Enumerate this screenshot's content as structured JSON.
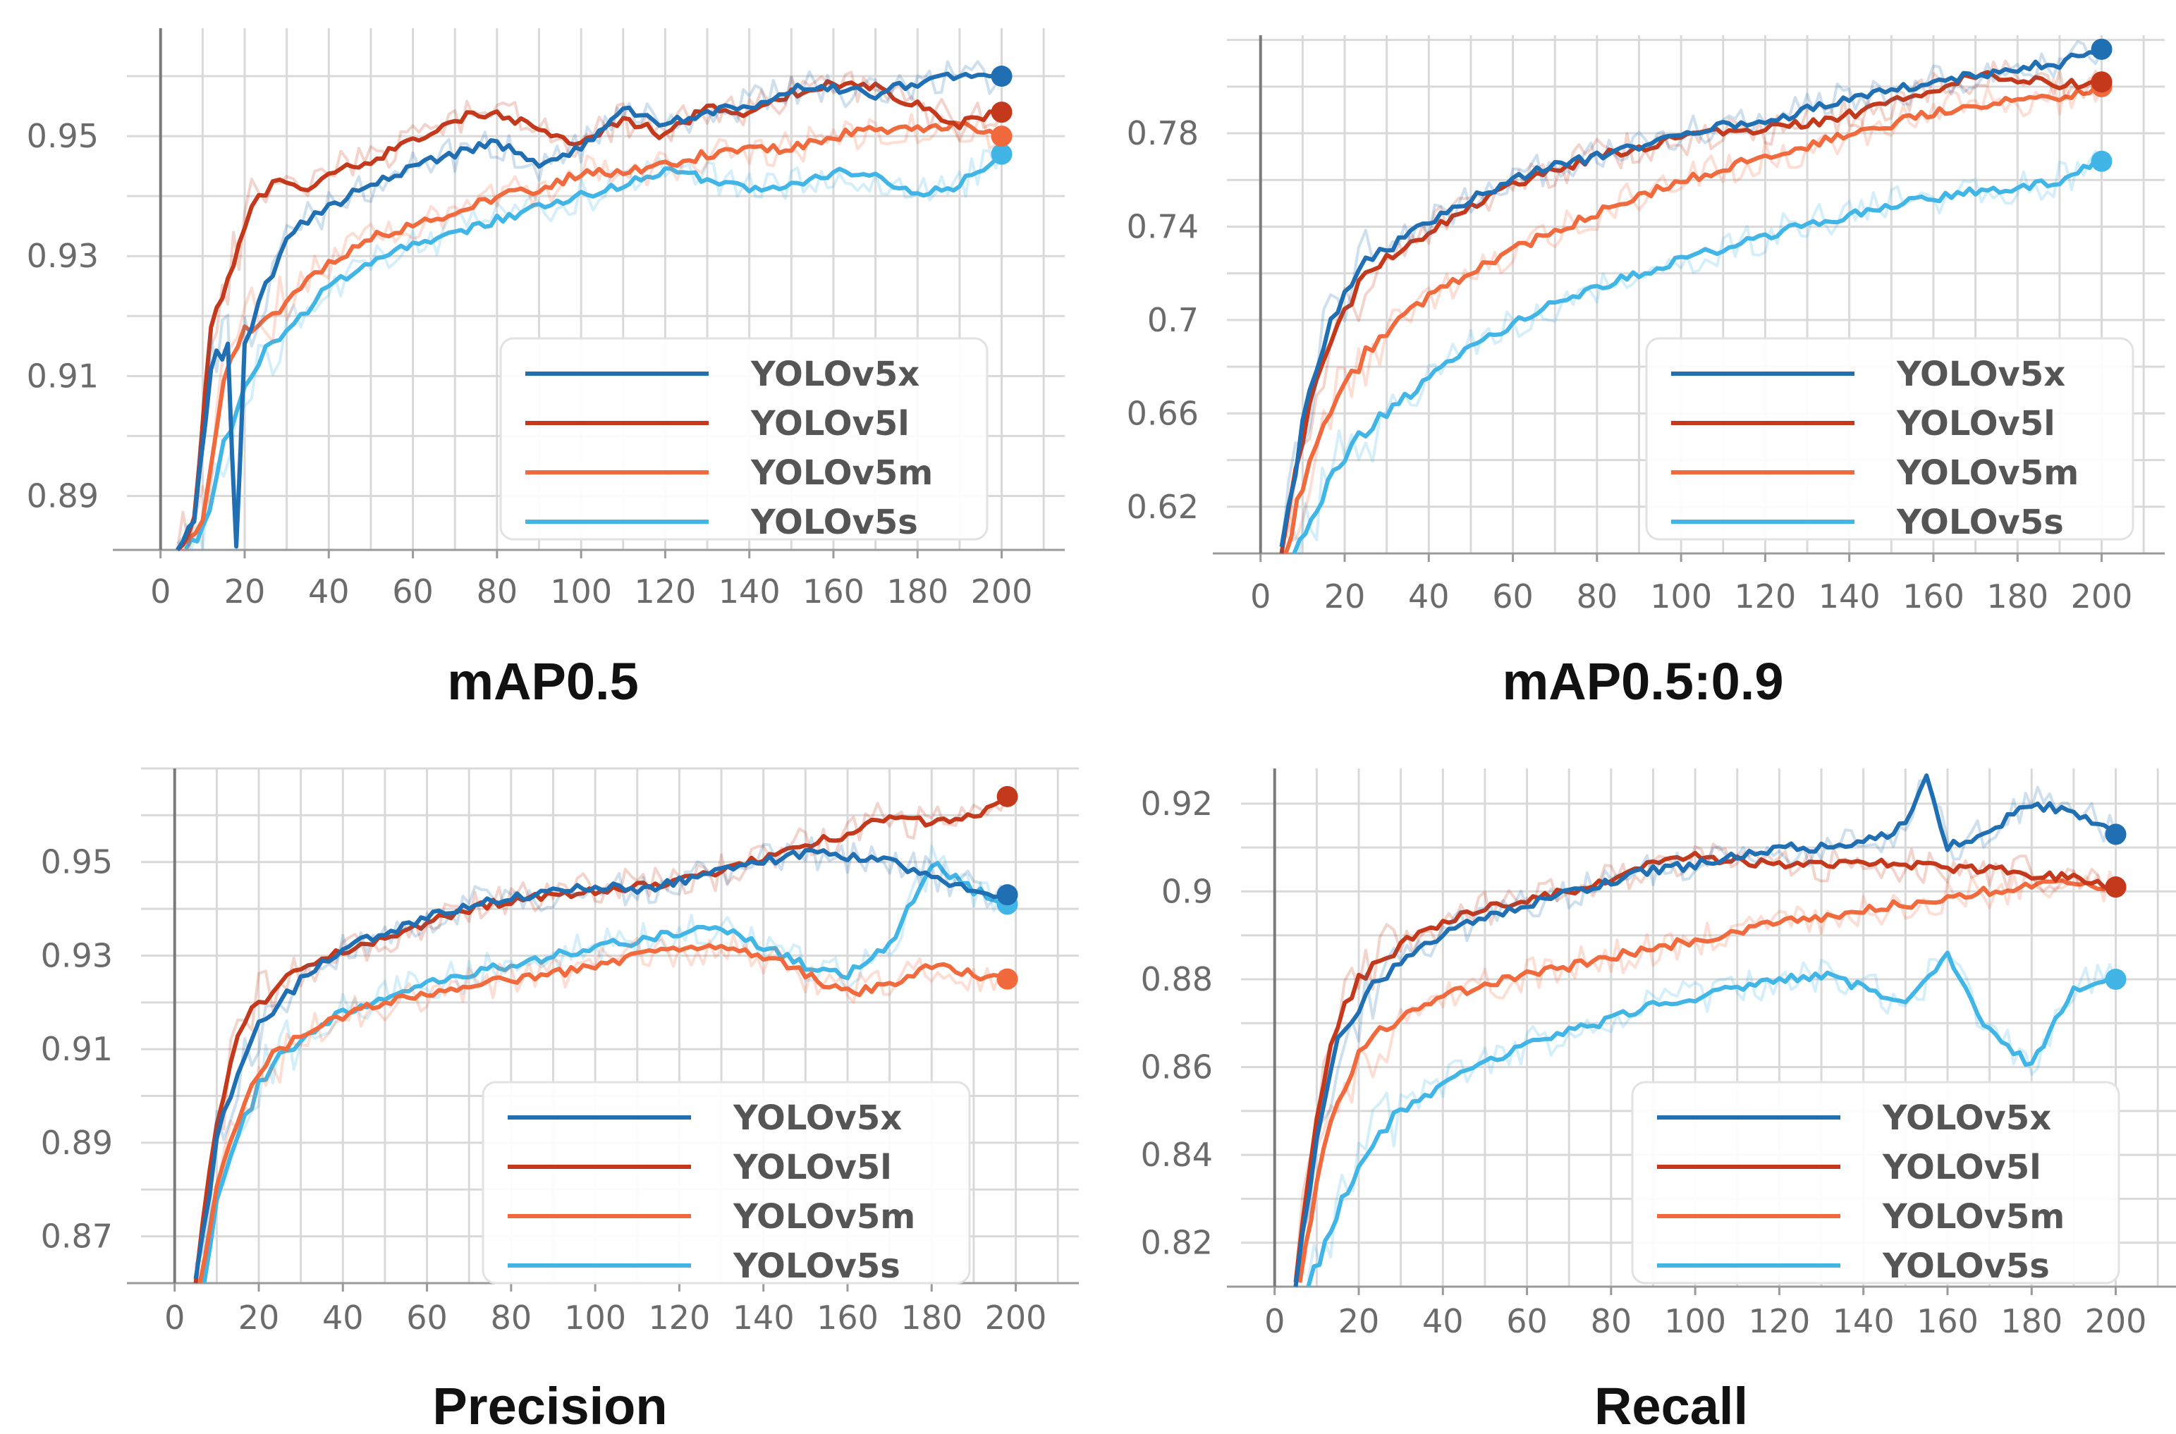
{
  "palette": {
    "YOLOv5x": "#1f6fb2",
    "YOLOv5l": "#c4391b",
    "YOLOv5m": "#f06a3e",
    "YOLOv5s": "#41b6e6",
    "grid": "#d9d9d9",
    "axis": "#9a9a9a",
    "zero_line": "#7a7a7a"
  },
  "chart_data": [
    {
      "type": "line",
      "title": "mAP0.5",
      "xlabel": "",
      "ylabel": "",
      "xlim": [
        -8,
        215
      ],
      "ylim": [
        0.881,
        0.968
      ],
      "xticks": [
        0,
        20,
        40,
        60,
        80,
        100,
        120,
        140,
        160,
        180,
        200
      ],
      "xtick_labels": [
        "0",
        "20",
        "40",
        "60",
        "80",
        "100",
        "120",
        "140",
        "160",
        "180",
        "200"
      ],
      "yticks": [
        0.89,
        0.91,
        0.93,
        0.95
      ],
      "ytick_labels": [
        "0.89",
        "0.91",
        "0.93",
        "0.95"
      ],
      "legend": [
        "YOLOv5x",
        "YOLOv5l",
        "YOLOv5m",
        "YOLOv5s"
      ],
      "legend_position": "bottom-right",
      "series": [
        {
          "name": "YOLOv5x",
          "x": [
            4,
            8,
            12,
            16,
            18,
            20,
            25,
            30,
            35,
            40,
            50,
            60,
            70,
            80,
            90,
            100,
            110,
            120,
            130,
            140,
            150,
            160,
            170,
            180,
            190,
            200
          ],
          "values": [
            0.881,
            0.886,
            0.912,
            0.915,
            0.881,
            0.915,
            0.925,
            0.933,
            0.936,
            0.938,
            0.942,
            0.945,
            0.947,
            0.949,
            0.945,
            0.948,
            0.955,
            0.952,
            0.954,
            0.955,
            0.958,
            0.958,
            0.957,
            0.959,
            0.96,
            0.96
          ]
        },
        {
          "name": "YOLOv5l",
          "x": [
            4,
            8,
            12,
            16,
            20,
            25,
            30,
            35,
            40,
            50,
            60,
            70,
            80,
            90,
            100,
            110,
            120,
            130,
            140,
            150,
            160,
            170,
            180,
            190,
            200
          ],
          "values": [
            0.881,
            0.887,
            0.918,
            0.925,
            0.935,
            0.941,
            0.943,
            0.941,
            0.944,
            0.946,
            0.949,
            0.953,
            0.954,
            0.951,
            0.949,
            0.953,
            0.95,
            0.955,
            0.954,
            0.957,
            0.959,
            0.958,
            0.955,
            0.952,
            0.954
          ]
        },
        {
          "name": "YOLOv5m",
          "x": [
            5,
            10,
            15,
            20,
            25,
            30,
            35,
            40,
            50,
            60,
            70,
            80,
            90,
            100,
            110,
            120,
            130,
            140,
            150,
            160,
            170,
            180,
            190,
            200
          ],
          "values": [
            0.881,
            0.887,
            0.91,
            0.918,
            0.92,
            0.922,
            0.926,
            0.929,
            0.933,
            0.935,
            0.937,
            0.94,
            0.941,
            0.944,
            0.944,
            0.945,
            0.947,
            0.948,
            0.948,
            0.95,
            0.951,
            0.951,
            0.952,
            0.95
          ]
        },
        {
          "name": "YOLOv5s",
          "x": [
            6,
            10,
            15,
            20,
            25,
            30,
            35,
            40,
            50,
            60,
            70,
            80,
            90,
            100,
            110,
            120,
            130,
            140,
            150,
            160,
            170,
            180,
            190,
            200
          ],
          "values": [
            0.881,
            0.884,
            0.898,
            0.909,
            0.915,
            0.918,
            0.921,
            0.925,
            0.929,
            0.932,
            0.934,
            0.936,
            0.938,
            0.94,
            0.942,
            0.944,
            0.943,
            0.941,
            0.942,
            0.944,
            0.943,
            0.94,
            0.942,
            0.947
          ]
        }
      ]
    },
    {
      "type": "line",
      "title": "mAP0.5:0.9",
      "xlabel": "",
      "ylabel": "",
      "xlim": [
        -8,
        215
      ],
      "ylim": [
        0.6,
        0.822
      ],
      "xticks": [
        0,
        20,
        40,
        60,
        80,
        100,
        120,
        140,
        160,
        180,
        200
      ],
      "xtick_labels": [
        "0",
        "20",
        "40",
        "60",
        "80",
        "100",
        "120",
        "140",
        "160",
        "180",
        "200"
      ],
      "yticks": [
        0.62,
        0.66,
        0.7,
        0.74,
        0.78
      ],
      "ytick_labels": [
        "0.62",
        "0.66",
        "0.7",
        "0.74",
        "0.78"
      ],
      "legend": [
        "YOLOv5x",
        "YOLOv5l",
        "YOLOv5m",
        "YOLOv5s"
      ],
      "legend_position": "bottom-right",
      "series": [
        {
          "name": "YOLOv5x",
          "x": [
            5,
            10,
            15,
            20,
            25,
            30,
            40,
            50,
            60,
            70,
            80,
            90,
            100,
            110,
            120,
            130,
            140,
            150,
            160,
            170,
            180,
            190,
            200
          ],
          "values": [
            0.6,
            0.655,
            0.69,
            0.712,
            0.725,
            0.73,
            0.742,
            0.752,
            0.76,
            0.766,
            0.77,
            0.774,
            0.78,
            0.784,
            0.785,
            0.79,
            0.795,
            0.798,
            0.802,
            0.805,
            0.808,
            0.81,
            0.816
          ]
        },
        {
          "name": "YOLOv5l",
          "x": [
            5,
            10,
            15,
            20,
            25,
            30,
            40,
            50,
            60,
            70,
            80,
            90,
            100,
            110,
            120,
            130,
            140,
            150,
            160,
            170,
            180,
            190,
            200
          ],
          "values": [
            0.6,
            0.65,
            0.685,
            0.705,
            0.718,
            0.726,
            0.738,
            0.748,
            0.758,
            0.764,
            0.77,
            0.774,
            0.778,
            0.781,
            0.782,
            0.784,
            0.788,
            0.793,
            0.799,
            0.805,
            0.803,
            0.801,
            0.802
          ]
        },
        {
          "name": "YOLOv5m",
          "x": [
            6,
            10,
            15,
            20,
            25,
            30,
            40,
            50,
            60,
            70,
            80,
            90,
            100,
            110,
            120,
            130,
            140,
            150,
            160,
            170,
            180,
            190,
            200
          ],
          "values": [
            0.6,
            0.63,
            0.655,
            0.672,
            0.685,
            0.695,
            0.71,
            0.721,
            0.73,
            0.738,
            0.746,
            0.753,
            0.759,
            0.765,
            0.77,
            0.774,
            0.78,
            0.784,
            0.789,
            0.792,
            0.794,
            0.796,
            0.8
          ]
        },
        {
          "name": "YOLOv5s",
          "x": [
            8,
            12,
            16,
            20,
            25,
            30,
            40,
            50,
            60,
            70,
            80,
            90,
            100,
            110,
            120,
            130,
            140,
            150,
            160,
            170,
            180,
            190,
            200
          ],
          "values": [
            0.6,
            0.615,
            0.63,
            0.642,
            0.652,
            0.66,
            0.675,
            0.688,
            0.698,
            0.707,
            0.714,
            0.72,
            0.726,
            0.731,
            0.736,
            0.741,
            0.745,
            0.749,
            0.752,
            0.755,
            0.757,
            0.76,
            0.768
          ]
        }
      ]
    },
    {
      "type": "line",
      "title": "Precision",
      "xlabel": "",
      "ylabel": "",
      "xlim": [
        -8,
        215
      ],
      "ylim": [
        0.86,
        0.97
      ],
      "xticks": [
        0,
        20,
        40,
        60,
        80,
        100,
        120,
        140,
        160,
        180,
        200
      ],
      "xtick_labels": [
        "0",
        "20",
        "40",
        "60",
        "80",
        "100",
        "120",
        "140",
        "160",
        "180",
        "200"
      ],
      "yticks": [
        0.87,
        0.89,
        0.91,
        0.93,
        0.95
      ],
      "ytick_labels": [
        "0.87",
        "0.89",
        "0.91",
        "0.93",
        "0.95"
      ],
      "legend": [
        "YOLOv5x",
        "YOLOv5l",
        "YOLOv5m",
        "YOLOv5s"
      ],
      "legend_position": "bottom-right",
      "series": [
        {
          "name": "YOLOv5x",
          "x": [
            5,
            10,
            15,
            20,
            25,
            30,
            35,
            40,
            50,
            60,
            70,
            80,
            90,
            100,
            110,
            120,
            130,
            140,
            150,
            160,
            170,
            180,
            190,
            198
          ],
          "values": [
            0.86,
            0.89,
            0.905,
            0.915,
            0.92,
            0.925,
            0.928,
            0.932,
            0.935,
            0.938,
            0.941,
            0.942,
            0.944,
            0.945,
            0.944,
            0.946,
            0.948,
            0.95,
            0.952,
            0.951,
            0.95,
            0.947,
            0.944,
            0.943
          ]
        },
        {
          "name": "YOLOv5l",
          "x": [
            5,
            10,
            15,
            20,
            25,
            30,
            35,
            40,
            50,
            60,
            70,
            80,
            90,
            100,
            110,
            120,
            130,
            140,
            150,
            160,
            170,
            180,
            190,
            198
          ],
          "values": [
            0.86,
            0.895,
            0.912,
            0.92,
            0.924,
            0.927,
            0.929,
            0.931,
            0.934,
            0.937,
            0.94,
            0.942,
            0.943,
            0.944,
            0.945,
            0.946,
            0.948,
            0.951,
            0.954,
            0.956,
            0.96,
            0.958,
            0.96,
            0.964
          ]
        },
        {
          "name": "YOLOv5m",
          "x": [
            6,
            10,
            15,
            20,
            25,
            30,
            35,
            40,
            50,
            60,
            70,
            80,
            90,
            100,
            110,
            120,
            130,
            140,
            150,
            160,
            170,
            180,
            190,
            198
          ],
          "values": [
            0.86,
            0.88,
            0.895,
            0.905,
            0.91,
            0.913,
            0.915,
            0.917,
            0.92,
            0.922,
            0.924,
            0.925,
            0.926,
            0.928,
            0.93,
            0.931,
            0.932,
            0.93,
            0.926,
            0.922,
            0.924,
            0.928,
            0.926,
            0.925
          ]
        },
        {
          "name": "YOLOv5s",
          "x": [
            7,
            10,
            15,
            20,
            25,
            30,
            35,
            40,
            50,
            60,
            70,
            80,
            90,
            100,
            110,
            120,
            130,
            140,
            150,
            160,
            170,
            180,
            190,
            198
          ],
          "values": [
            0.86,
            0.878,
            0.892,
            0.902,
            0.908,
            0.912,
            0.915,
            0.918,
            0.921,
            0.924,
            0.926,
            0.928,
            0.93,
            0.932,
            0.933,
            0.935,
            0.936,
            0.932,
            0.928,
            0.926,
            0.932,
            0.95,
            0.944,
            0.941
          ]
        }
      ]
    },
    {
      "type": "line",
      "title": "Recall",
      "xlabel": "",
      "ylabel": "",
      "xlim": [
        -8,
        215
      ],
      "ylim": [
        0.81,
        0.928
      ],
      "xticks": [
        0,
        20,
        40,
        60,
        80,
        100,
        120,
        140,
        160,
        180,
        200
      ],
      "xtick_labels": [
        "0",
        "20",
        "40",
        "60",
        "80",
        "100",
        "120",
        "140",
        "160",
        "180",
        "200"
      ],
      "yticks": [
        0.82,
        0.84,
        0.86,
        0.88,
        0.9,
        0.92
      ],
      "ytick_labels": [
        "0.82",
        "0.84",
        "0.86",
        "0.88",
        "0.9",
        "0.92"
      ],
      "legend": [
        "YOLOv5x",
        "YOLOv5l",
        "YOLOv5m",
        "YOLOv5s"
      ],
      "legend_position": "bottom-right",
      "series": [
        {
          "name": "YOLOv5x",
          "x": [
            5,
            10,
            15,
            20,
            25,
            30,
            40,
            50,
            60,
            70,
            80,
            90,
            100,
            110,
            120,
            130,
            140,
            150,
            155,
            160,
            170,
            180,
            190,
            200
          ],
          "values": [
            0.81,
            0.845,
            0.865,
            0.874,
            0.88,
            0.884,
            0.89,
            0.894,
            0.897,
            0.9,
            0.902,
            0.905,
            0.906,
            0.908,
            0.91,
            0.91,
            0.911,
            0.915,
            0.926,
            0.91,
            0.914,
            0.92,
            0.918,
            0.913
          ]
        },
        {
          "name": "YOLOv5l",
          "x": [
            5,
            10,
            15,
            20,
            25,
            30,
            40,
            50,
            60,
            70,
            80,
            90,
            100,
            110,
            120,
            130,
            140,
            150,
            160,
            170,
            180,
            190,
            200
          ],
          "values": [
            0.81,
            0.85,
            0.87,
            0.88,
            0.885,
            0.888,
            0.893,
            0.896,
            0.898,
            0.9,
            0.903,
            0.906,
            0.908,
            0.907,
            0.906,
            0.906,
            0.907,
            0.906,
            0.905,
            0.905,
            0.904,
            0.903,
            0.901
          ]
        },
        {
          "name": "YOLOv5m",
          "x": [
            6,
            10,
            15,
            20,
            25,
            30,
            40,
            50,
            60,
            70,
            80,
            90,
            100,
            110,
            120,
            130,
            140,
            150,
            160,
            170,
            180,
            190,
            200
          ],
          "values": [
            0.81,
            0.835,
            0.852,
            0.862,
            0.868,
            0.872,
            0.876,
            0.879,
            0.881,
            0.883,
            0.885,
            0.887,
            0.889,
            0.891,
            0.893,
            0.894,
            0.896,
            0.897,
            0.899,
            0.9,
            0.901,
            0.902,
            0.901
          ]
        },
        {
          "name": "YOLOv5s",
          "x": [
            8,
            12,
            16,
            20,
            25,
            30,
            40,
            50,
            60,
            70,
            80,
            90,
            100,
            110,
            120,
            130,
            140,
            150,
            160,
            170,
            180,
            190,
            200
          ],
          "values": [
            0.81,
            0.82,
            0.83,
            0.838,
            0.845,
            0.85,
            0.856,
            0.861,
            0.865,
            0.868,
            0.871,
            0.874,
            0.876,
            0.878,
            0.88,
            0.881,
            0.878,
            0.874,
            0.886,
            0.868,
            0.86,
            0.878,
            0.88
          ]
        }
      ]
    }
  ]
}
